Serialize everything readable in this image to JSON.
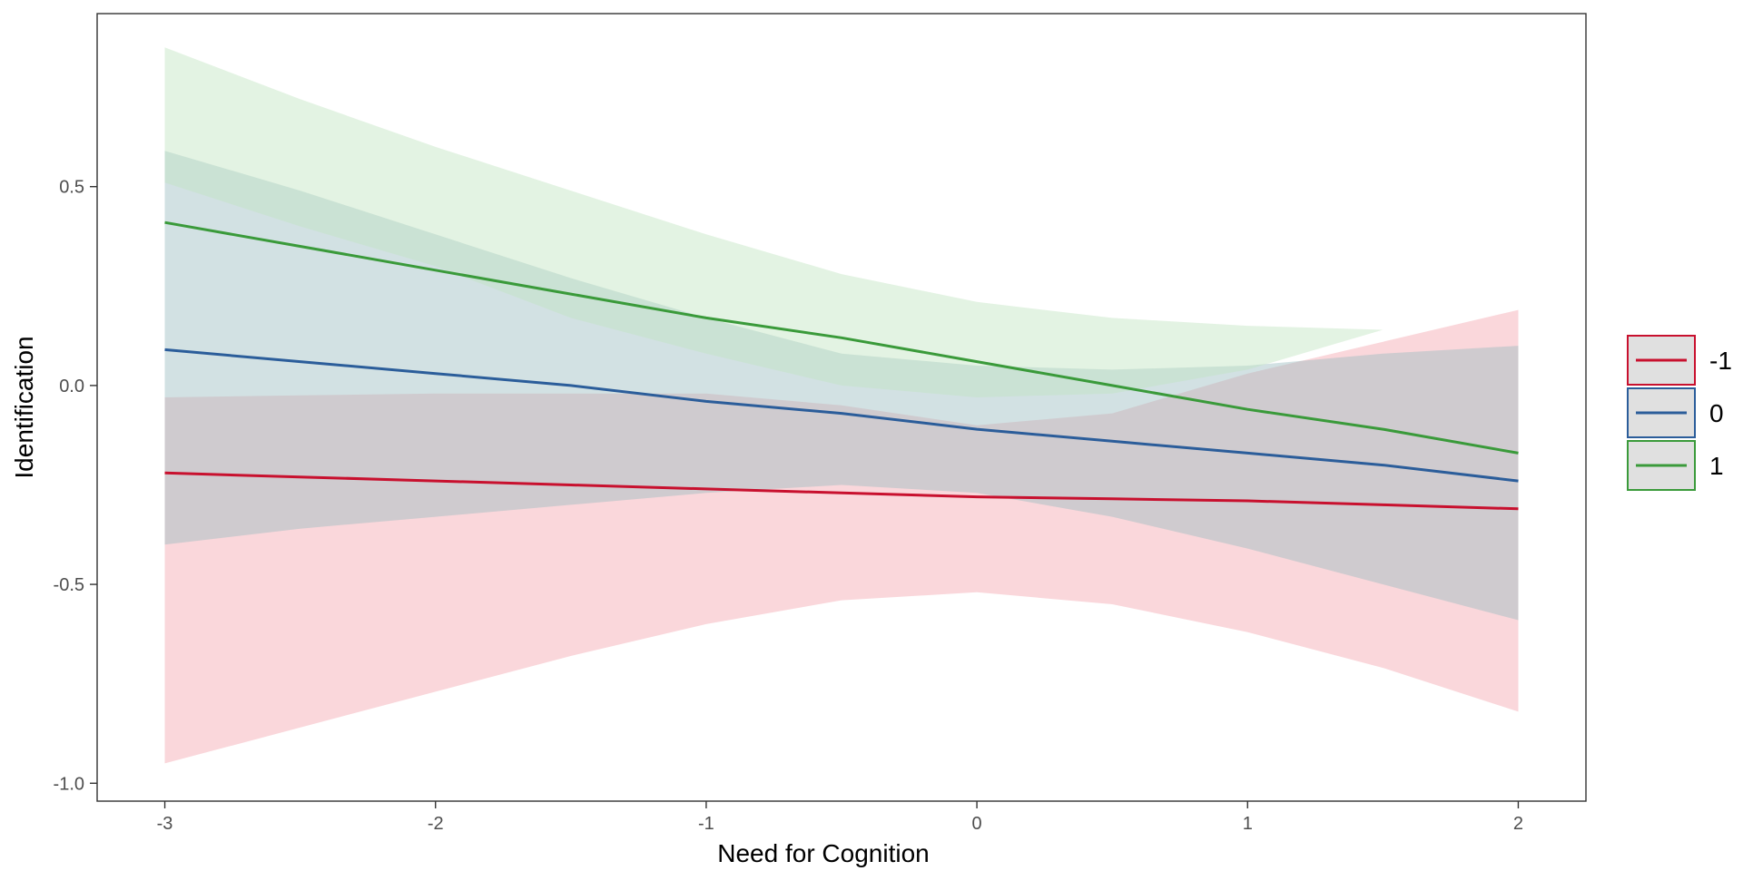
{
  "chart_data": {
    "type": "line",
    "xlabel": "Need for Cognition",
    "ylabel": "Identification",
    "xlim": [
      -3.25,
      2.25
    ],
    "ylim": [
      -1.045,
      0.935
    ],
    "x_ticks": [
      -3,
      -2,
      -1,
      0,
      1,
      2
    ],
    "x_tick_labels": [
      "-3",
      "-2",
      "-1",
      "0",
      "1",
      "2"
    ],
    "y_ticks": [
      0.5,
      0.0,
      -0.5,
      -1.0
    ],
    "y_tick_labels": [
      "0.5",
      "0.0",
      "-0.5",
      "-1.0"
    ],
    "grid": false,
    "legend_position": "right",
    "x": [
      -3,
      -2.5,
      -2,
      -1.5,
      -1,
      -0.5,
      0,
      0.5,
      1,
      1.5,
      2
    ],
    "series": [
      {
        "name": "-1",
        "color": "#c8102e",
        "fill": "#f4a6b0",
        "y": [
          -0.22,
          -0.23,
          -0.24,
          -0.25,
          -0.26,
          -0.27,
          -0.28,
          -0.285,
          -0.29,
          -0.3,
          -0.31
        ],
        "lower": [
          -0.95,
          -0.86,
          -0.77,
          -0.68,
          -0.6,
          -0.54,
          -0.52,
          -0.55,
          -0.62,
          -0.71,
          -0.82
        ],
        "upper": [
          -0.03,
          -0.025,
          -0.02,
          -0.02,
          -0.02,
          -0.05,
          -0.1,
          -0.07,
          0.03,
          0.11,
          0.19
        ]
      },
      {
        "name": "0",
        "color": "#2b5d9a",
        "fill": "#9bbcc0",
        "y": [
          0.09,
          0.06,
          0.03,
          0.0,
          -0.04,
          -0.07,
          -0.11,
          -0.14,
          -0.17,
          -0.2,
          -0.24
        ],
        "lower": [
          -0.4,
          -0.36,
          -0.33,
          -0.3,
          -0.27,
          -0.25,
          -0.27,
          -0.33,
          -0.41,
          -0.5,
          -0.59
        ],
        "upper": [
          0.59,
          0.49,
          0.38,
          0.27,
          0.17,
          0.08,
          0.05,
          0.04,
          0.05,
          0.08,
          0.1
        ]
      },
      {
        "name": "1",
        "color": "#3a9a3a",
        "fill": "#c2e4c2",
        "y": [
          0.41,
          0.35,
          0.29,
          0.23,
          0.17,
          0.12,
          0.06,
          0.0,
          -0.06,
          -0.11,
          -0.17
        ],
        "lower": [
          0.51,
          0.4,
          0.3,
          0.17,
          0.08,
          0.0,
          -0.03,
          -0.02,
          0.04,
          0.14,
          0.14
        ],
        "upper": [
          0.85,
          0.72,
          0.6,
          0.49,
          0.38,
          0.28,
          0.21,
          0.17,
          0.15,
          0.14,
          0.14
        ]
      }
    ]
  }
}
